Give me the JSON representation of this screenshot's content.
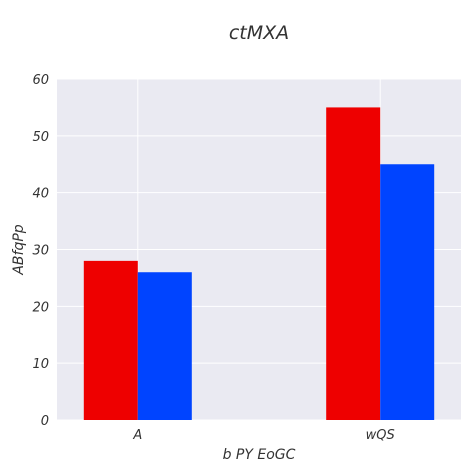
{
  "colors": {
    "plot_background": "#EAEAF2",
    "grid": "#FFFFFF",
    "series_1": "#EE0000",
    "series_2": "#0044FF",
    "text": "#333333"
  },
  "chart_data": {
    "type": "bar",
    "title": "ctMXA",
    "xlabel": "b PY EoGC",
    "ylabel": "ABfqPp",
    "categories": [
      "A",
      "wQS"
    ],
    "series": [
      {
        "values": [
          28,
          55
        ]
      },
      {
        "values": [
          26,
          45
        ]
      }
    ],
    "ylim": [
      0,
      60
    ],
    "yticks": [
      0,
      10,
      20,
      30,
      40,
      50,
      60
    ],
    "grid": true,
    "legend": "none"
  }
}
